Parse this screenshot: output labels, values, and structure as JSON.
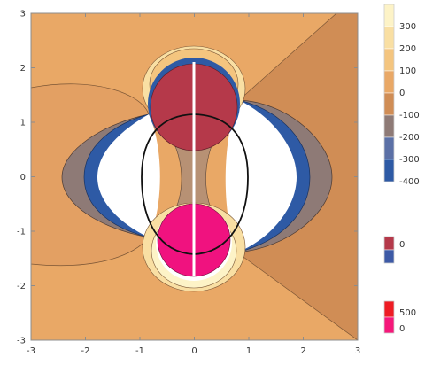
{
  "chart_data": {
    "type": "contour",
    "xlim": [
      -3,
      3
    ],
    "ylim": [
      -3,
      3
    ],
    "x_ticks": [
      "-3",
      "-2",
      "-1",
      "0",
      "1",
      "2",
      "3"
    ],
    "y_ticks": [
      "-3",
      "-2",
      "-1",
      "0",
      "1",
      "2",
      "3"
    ],
    "grid": false,
    "contour_levels": [
      -400,
      -300,
      -200,
      -100,
      0,
      100,
      200,
      300
    ],
    "legends": [
      {
        "position": "right-top",
        "entries": [
          {
            "label": "300",
            "color": "#fdf3c7"
          },
          {
            "label": "200",
            "color": "#f9dfa3"
          },
          {
            "label": "100",
            "color": "#f4c57f"
          },
          {
            "label": "0",
            "color": "#e9a866"
          },
          {
            "label": "-100",
            "color": "#d08d55"
          },
          {
            "label": "-200",
            "color": "#8e7a76"
          },
          {
            "label": "-300",
            "color": "#5b70a6"
          },
          {
            "label": "-400",
            "color": "#2e5aa5"
          }
        ]
      },
      {
        "position": "right-middle",
        "entries": [
          {
            "label": "0",
            "color": "#b5394a"
          },
          {
            "label": "",
            "color": "#3d5aa6"
          }
        ]
      },
      {
        "position": "right-bottom",
        "entries": [
          {
            "label": "500",
            "color": "#ee1c24"
          },
          {
            "label": "0",
            "color": "#f5187a"
          }
        ]
      }
    ],
    "regions": [
      {
        "name": "upper-disk",
        "center": [
          0,
          1.2
        ],
        "radius": 0.78,
        "color": "#b5394a"
      },
      {
        "name": "lower-disk",
        "center": [
          0,
          -1.2
        ],
        "radius": 0.7,
        "color": "#f0127f"
      },
      {
        "name": "black-level-curve",
        "color": "#111111"
      },
      {
        "name": "white-cut-line",
        "x": 0,
        "y_range": [
          -1.85,
          2.1
        ],
        "color": "#ffffff"
      }
    ]
  }
}
